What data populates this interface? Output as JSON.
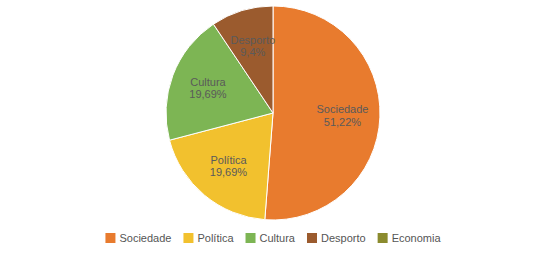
{
  "chart_data": {
    "type": "pie",
    "categories": [
      "Sociedade",
      "Política",
      "Cultura",
      "Desporto",
      "Economia"
    ],
    "values": [
      51.22,
      19.69,
      19.69,
      9.4,
      0.0
    ],
    "value_labels": [
      "51,22%",
      "19,69%",
      "19,69%",
      "9,4%",
      null
    ],
    "colors": [
      "#E87B2E",
      "#F2C12E",
      "#7DB554",
      "#9B5B2E",
      "#8B8B2E"
    ],
    "data_labels": true,
    "legend": "bottom"
  }
}
